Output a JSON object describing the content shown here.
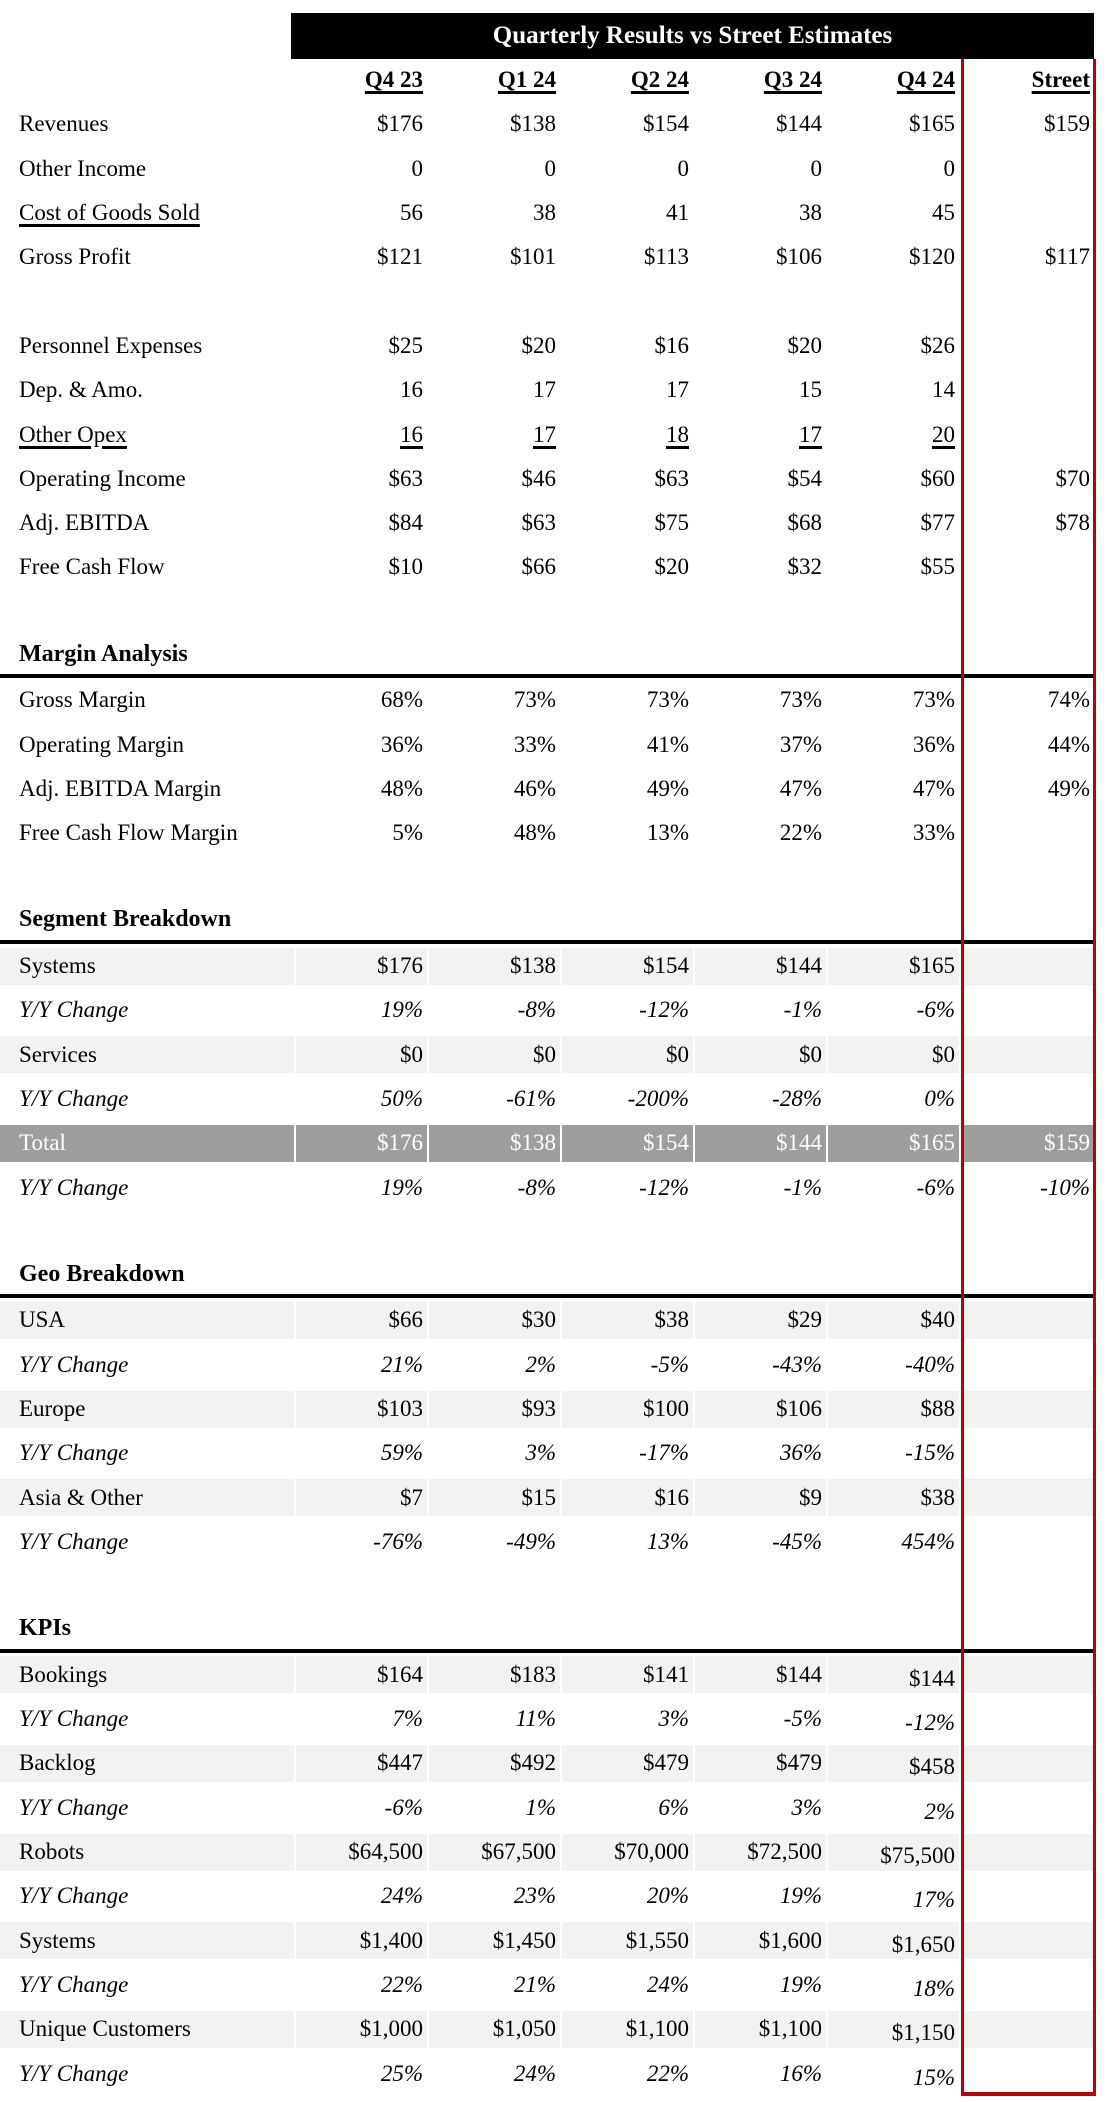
{
  "title": "Quarterly Results vs Street Estimates",
  "columns": [
    "Q4 23",
    "Q1 24",
    "Q2 24",
    "Q3 24",
    "Q4 24",
    "Street"
  ],
  "colors": {
    "title_bg": "#000000",
    "title_fg": "#ffffff",
    "text": "#000000",
    "section_line": "#000000",
    "band_light": "#f2f2f2",
    "band_dark": "#9e9e9e",
    "accent_red": "#c00000"
  },
  "rows": [
    {
      "type": "colheader"
    },
    {
      "type": "data",
      "label": "Revenues",
      "values": [
        "$176",
        "$138",
        "$154",
        "$144",
        "$165",
        "$159"
      ]
    },
    {
      "type": "data",
      "label": "Other Income",
      "values": [
        "0",
        "0",
        "0",
        "0",
        "0",
        ""
      ]
    },
    {
      "type": "data",
      "label": "Cost of Goods Sold",
      "label_underline": true,
      "values": [
        "56",
        "38",
        "41",
        "38",
        "45",
        ""
      ]
    },
    {
      "type": "data",
      "label": "Gross Profit",
      "values": [
        "$121",
        "$101",
        "$113",
        "$106",
        "$120",
        "$117"
      ]
    },
    {
      "type": "blank"
    },
    {
      "type": "data",
      "label": "Personnel Expenses",
      "values": [
        "$25",
        "$20",
        "$16",
        "$20",
        "$26",
        ""
      ]
    },
    {
      "type": "data",
      "label": "Dep. & Amo.",
      "values": [
        "16",
        "17",
        "17",
        "15",
        "14",
        ""
      ]
    },
    {
      "type": "data",
      "label": "Other Opex",
      "label_underline": true,
      "values_underline": true,
      "values": [
        "16",
        "17",
        "18",
        "17",
        "20",
        ""
      ]
    },
    {
      "type": "data",
      "label": "Operating Income",
      "values": [
        "$63",
        "$46",
        "$63",
        "$54",
        "$60",
        "$70"
      ]
    },
    {
      "type": "data",
      "label": "Adj. EBITDA",
      "values": [
        "$84",
        "$63",
        "$75",
        "$68",
        "$77",
        "$78"
      ]
    },
    {
      "type": "data",
      "label": "Free Cash Flow",
      "values": [
        "$10",
        "$66",
        "$20",
        "$32",
        "$55",
        ""
      ]
    },
    {
      "type": "blank"
    },
    {
      "type": "section",
      "label": "Margin Analysis"
    },
    {
      "type": "data",
      "label": "Gross Margin",
      "values": [
        "68%",
        "73%",
        "73%",
        "73%",
        "73%",
        "74%"
      ]
    },
    {
      "type": "data",
      "label": "Operating Margin",
      "values": [
        "36%",
        "33%",
        "41%",
        "37%",
        "36%",
        "44%"
      ]
    },
    {
      "type": "data",
      "label": "Adj. EBITDA Margin",
      "values": [
        "48%",
        "46%",
        "49%",
        "47%",
        "47%",
        "49%"
      ]
    },
    {
      "type": "data",
      "label": "Free Cash Flow Margin",
      "values": [
        "5%",
        "48%",
        "13%",
        "22%",
        "33%",
        ""
      ]
    },
    {
      "type": "blank"
    },
    {
      "type": "section",
      "label": "Segment Breakdown"
    },
    {
      "type": "data",
      "label": "Systems",
      "shade": "light",
      "values": [
        "$176",
        "$138",
        "$154",
        "$144",
        "$165",
        ""
      ]
    },
    {
      "type": "data",
      "label": "Y/Y Change",
      "italic": true,
      "values": [
        "19%",
        "-8%",
        "-12%",
        "-1%",
        "-6%",
        ""
      ]
    },
    {
      "type": "data",
      "label": "Services",
      "shade": "light",
      "values": [
        "$0",
        "$0",
        "$0",
        "$0",
        "$0",
        ""
      ]
    },
    {
      "type": "data",
      "label": "Y/Y Change",
      "italic": true,
      "values": [
        "50%",
        "-61%",
        "-200%",
        "-28%",
        "0%",
        ""
      ]
    },
    {
      "type": "data",
      "label": "Total",
      "shade": "dark",
      "values": [
        "$176",
        "$138",
        "$154",
        "$144",
        "$165",
        "$159"
      ]
    },
    {
      "type": "data",
      "label": "Y/Y Change",
      "italic": true,
      "values": [
        "19%",
        "-8%",
        "-12%",
        "-1%",
        "-6%",
        "-10%"
      ]
    },
    {
      "type": "blank"
    },
    {
      "type": "section",
      "label": "Geo Breakdown"
    },
    {
      "type": "data",
      "label": "USA",
      "shade": "light",
      "values": [
        "$66",
        "$30",
        "$38",
        "$29",
        "$40",
        ""
      ]
    },
    {
      "type": "data",
      "label": "Y/Y Change",
      "italic": true,
      "values": [
        "21%",
        "2%",
        "-5%",
        "-43%",
        "-40%",
        ""
      ]
    },
    {
      "type": "data",
      "label": "Europe",
      "shade": "light",
      "values": [
        "$103",
        "$93",
        "$100",
        "$106",
        "$88",
        ""
      ]
    },
    {
      "type": "data",
      "label": "Y/Y Change",
      "italic": true,
      "values": [
        "59%",
        "3%",
        "-17%",
        "36%",
        "-15%",
        ""
      ]
    },
    {
      "type": "data",
      "label": "Asia & Other",
      "shade": "light",
      "values": [
        "$7",
        "$15",
        "$16",
        "$9",
        "$38",
        ""
      ]
    },
    {
      "type": "data",
      "label": "Y/Y Change",
      "italic": true,
      "values": [
        "-76%",
        "-49%",
        "13%",
        "-45%",
        "454%",
        ""
      ]
    },
    {
      "type": "blank"
    },
    {
      "type": "section",
      "label": "KPIs"
    },
    {
      "type": "data",
      "label": "Bookings",
      "shade": "light",
      "group": "kpi",
      "values": [
        "$164",
        "$183",
        "$141",
        "$144",
        "$144",
        ""
      ]
    },
    {
      "type": "data",
      "label": "Y/Y Change",
      "italic": true,
      "group": "kpi",
      "values": [
        "7%",
        "11%",
        "3%",
        "-5%",
        "-12%",
        ""
      ]
    },
    {
      "type": "data",
      "label": "Backlog",
      "shade": "light",
      "group": "kpi",
      "values": [
        "$447",
        "$492",
        "$479",
        "$479",
        "$458",
        ""
      ]
    },
    {
      "type": "data",
      "label": "Y/Y Change",
      "italic": true,
      "group": "kpi",
      "values": [
        "-6%",
        "1%",
        "6%",
        "3%",
        "2%",
        ""
      ]
    },
    {
      "type": "data",
      "label": "Robots",
      "shade": "light",
      "group": "kpi",
      "values": [
        "$64,500",
        "$67,500",
        "$70,000",
        "$72,500",
        "$75,500",
        ""
      ]
    },
    {
      "type": "data",
      "label": "Y/Y Change",
      "italic": true,
      "group": "kpi",
      "values": [
        "24%",
        "23%",
        "20%",
        "19%",
        "17%",
        ""
      ]
    },
    {
      "type": "data",
      "label": "Systems",
      "shade": "light",
      "group": "kpi",
      "values": [
        "$1,400",
        "$1,450",
        "$1,550",
        "$1,600",
        "$1,650",
        ""
      ]
    },
    {
      "type": "data",
      "label": "Y/Y Change",
      "italic": true,
      "group": "kpi",
      "values": [
        "22%",
        "21%",
        "24%",
        "19%",
        "18%",
        ""
      ]
    },
    {
      "type": "data",
      "label": "Unique Customers",
      "shade": "light",
      "group": "kpi",
      "values": [
        "$1,000",
        "$1,050",
        "$1,100",
        "$1,100",
        "$1,150",
        ""
      ]
    },
    {
      "type": "data",
      "label": "Y/Y Change",
      "italic": true,
      "group": "kpi",
      "values": [
        "25%",
        "24%",
        "22%",
        "16%",
        "15%",
        ""
      ]
    }
  ]
}
